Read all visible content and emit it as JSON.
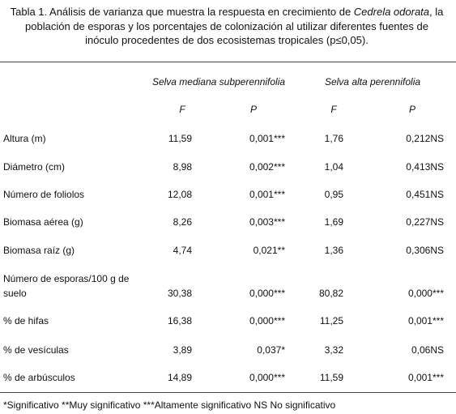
{
  "caption": {
    "before": "Tabla 1. Análisis de varianza que muestra la respuesta en crecimiento de ",
    "italic": "Cedrela odorata",
    "after": ", la población de esporas y los porcentajes de colonización al utilizar diferentes fuentes de inóculo procedentes de dos ecosistemas tropicales (p≤0,05)."
  },
  "table": {
    "groups": [
      "Selva mediana subperennifolia",
      "Selva alta perennifolia"
    ],
    "columns": [
      "F",
      "P",
      "F",
      "P"
    ],
    "rows": [
      [
        "Altura (m)",
        "11,59",
        "0,001***",
        "1,76",
        "0,212NS"
      ],
      [
        "Diámetro (cm)",
        "8,98",
        "0,002***",
        "1,04",
        "0,413NS"
      ],
      [
        "Número de foliolos",
        "12,08",
        "0,001***",
        "0,95",
        "0,451NS"
      ],
      [
        "Biomasa aérea (g)",
        "8,26",
        "0,003***",
        "1,69",
        "0,227NS"
      ],
      [
        "Biomasa raíz (g)",
        "4,74",
        "0,021**",
        "1,36",
        "0,306NS"
      ],
      [
        "Número de esporas/100 g de suelo",
        "30,38",
        "0,000***",
        "80,82",
        "0,000***"
      ],
      [
        "% de hifas",
        "16,38",
        "0,000***",
        "11,25",
        "0,001***"
      ],
      [
        "% de vesículas",
        "3,89",
        "0,037*",
        "3,32",
        "0,06NS"
      ],
      [
        "% de arbúsculos",
        "14,89",
        "0,000***",
        "11,59",
        "0,001***"
      ]
    ]
  },
  "footnote": "*Significativo **Muy significativo ***Altamente significativo NS No significativo"
}
